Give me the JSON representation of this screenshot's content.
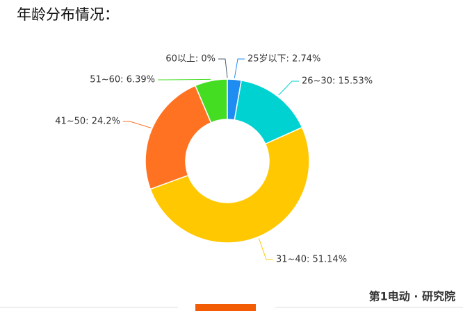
{
  "chart_data": {
    "type": "donut",
    "title": "年龄分布情况：",
    "labels": [
      "25岁以下: 2.74%",
      "26~30: 15.53%",
      "31~40: 51.14%",
      "41~50: 24.2%",
      "51~60: 6.39%",
      "60以上: 0%"
    ],
    "values": [
      2.74,
      15.53,
      51.14,
      24.2,
      6.39,
      0
    ],
    "colors": [
      "#1e8cf0",
      "#00d2d2",
      "#ffc800",
      "#ff7222",
      "#44dd22",
      "#4a5a6a"
    ]
  },
  "footer": {
    "brand": "第1电动 · 研究院"
  }
}
